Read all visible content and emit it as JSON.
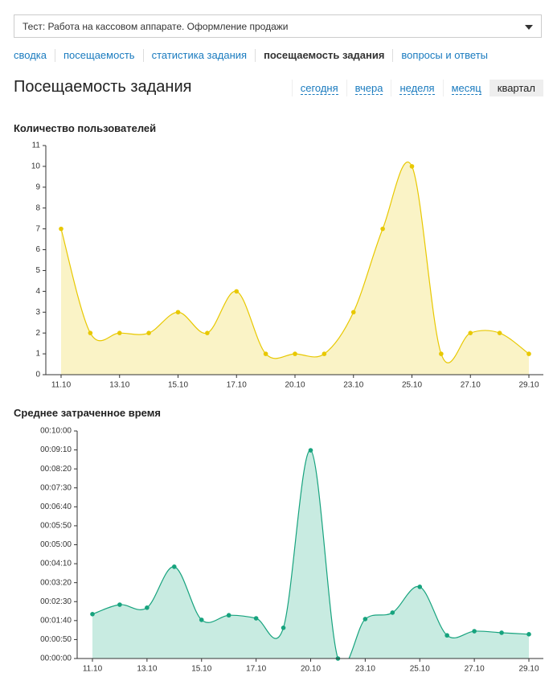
{
  "dropdown": {
    "label": "Тест: Работа на кассовом аппарате. Оформление продажи"
  },
  "tabs": [
    {
      "label": "сводка",
      "active": false
    },
    {
      "label": "посещаемость",
      "active": false
    },
    {
      "label": "статистика задания",
      "active": false
    },
    {
      "label": "посещаемость задания",
      "active": true
    },
    {
      "label": "вопросы и ответы",
      "active": false
    }
  ],
  "heading": "Посещаемость задания",
  "periods": [
    {
      "label": "сегодня",
      "active": false
    },
    {
      "label": "вчера",
      "active": false
    },
    {
      "label": "неделя",
      "active": false
    },
    {
      "label": "месяц",
      "active": false
    },
    {
      "label": "квартал",
      "active": true
    }
  ],
  "chart_data": [
    {
      "type": "area",
      "title": "Количество пользователей",
      "categories": [
        "11.10",
        null,
        "13.10",
        null,
        "15.10",
        null,
        "17.10",
        null,
        "20.10",
        null,
        "23.10",
        null,
        "25.10",
        null,
        "27.10",
        null,
        "29.10"
      ],
      "values": [
        7,
        2,
        2,
        2,
        3,
        2,
        4,
        1,
        1,
        1,
        3,
        7,
        10,
        1,
        2,
        2,
        1
      ],
      "color": "#e8c800",
      "fill": "#faf3c6",
      "ylim": [
        0,
        11
      ],
      "yticks": [
        0,
        1,
        2,
        3,
        4,
        5,
        6,
        7,
        8,
        9,
        10,
        11
      ]
    },
    {
      "type": "area",
      "title": "Среднее затраченное время",
      "categories": [
        "11.10",
        null,
        "13.10",
        null,
        "15.10",
        null,
        "17.10",
        null,
        "20.10",
        null,
        "23.10",
        null,
        "25.10",
        null,
        "27.10",
        null,
        "29.10"
      ],
      "values": [
        117,
        142,
        134,
        242,
        102,
        114,
        106,
        81,
        549,
        0,
        104,
        121,
        189,
        61,
        72,
        68,
        64
      ],
      "color": "#17a37e",
      "fill": "#c8ebe1",
      "ylim": [
        0,
        600
      ],
      "yticks": [
        {
          "value": 0,
          "label": "00:00:00"
        },
        {
          "value": 50,
          "label": "00:00:50"
        },
        {
          "value": 100,
          "label": "00:01:40"
        },
        {
          "value": 150,
          "label": "00:02:30"
        },
        {
          "value": 200,
          "label": "00:03:20"
        },
        {
          "value": 250,
          "label": "00:04:10"
        },
        {
          "value": 300,
          "label": "00:05:00"
        },
        {
          "value": 350,
          "label": "00:05:50"
        },
        {
          "value": 400,
          "label": "00:06:40"
        },
        {
          "value": 450,
          "label": "00:07:30"
        },
        {
          "value": 500,
          "label": "00:08:20"
        },
        {
          "value": 550,
          "label": "00:09:10"
        },
        {
          "value": 600,
          "label": "00:10:00"
        }
      ]
    }
  ]
}
